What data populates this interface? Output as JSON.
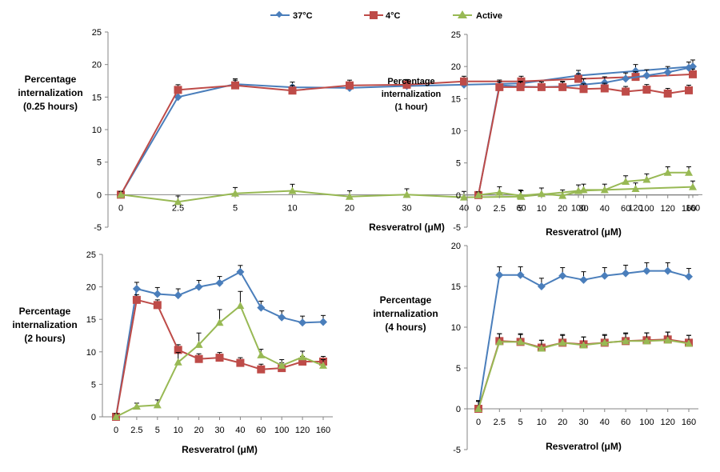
{
  "legend": {
    "items": [
      {
        "label": "37°C",
        "color": "#4a7ebb",
        "marker": "diamond"
      },
      {
        "label": "4°C",
        "color": "#be4b48",
        "marker": "square"
      },
      {
        "label": "Active",
        "color": "#98b954",
        "marker": "triangle"
      }
    ]
  },
  "chart_data": [
    {
      "type": "line",
      "title_lines": [
        "Percentage",
        "internalization",
        "(0.25 hours)"
      ],
      "xlabel": "Resveratrol (μM)",
      "categories": [
        "0",
        "2.5",
        "5",
        "10",
        "20",
        "30",
        "40",
        "60",
        "100",
        "120",
        "160"
      ],
      "ylim": [
        -5,
        25
      ],
      "yticks": [
        -5,
        0,
        5,
        10,
        15,
        20,
        25
      ],
      "series": [
        {
          "name": "37°C",
          "values": [
            0,
            15,
            17,
            16.5,
            16.4,
            16.7,
            16.9,
            17.1,
            18.3,
            19,
            19.7
          ],
          "errors": [
            0.5,
            1.0,
            0.8,
            0.8,
            0.8,
            0.8,
            0.8,
            0.8,
            0.8,
            1.0,
            1.0
          ]
        },
        {
          "name": "4°C",
          "values": [
            0,
            16.1,
            16.8,
            16,
            16.8,
            16.9,
            17.4,
            17.4,
            17.8,
            18.1,
            18.5
          ],
          "errors": [
            0.5,
            0.8,
            0.8,
            0.8,
            0.8,
            0.8,
            0.8,
            0.8,
            0.8,
            0.8,
            0.8
          ]
        },
        {
          "name": "Active",
          "values": [
            0,
            -1.1,
            0.2,
            0.6,
            -0.3,
            0,
            -0.4,
            -0.3,
            0.6,
            0.9,
            1.2
          ],
          "errors": [
            0.5,
            0.9,
            0.9,
            1.0,
            0.9,
            0.9,
            0.9,
            0.9,
            0.9,
            0.9,
            0.9
          ]
        }
      ]
    },
    {
      "type": "line",
      "title_lines": [
        "Percentage",
        "internalization",
        "(1 hour)"
      ],
      "xlabel": "Resveratrol (μM)",
      "categories": [
        "0",
        "2.5",
        "5",
        "10",
        "20",
        "30",
        "40",
        "60",
        "100",
        "120",
        "160"
      ],
      "ylim": [
        -5,
        25
      ],
      "yticks": [
        -5,
        0,
        5,
        10,
        15,
        20,
        25
      ],
      "series": [
        {
          "name": "37°C",
          "values": [
            0,
            17.1,
            16.9,
            16.8,
            16.9,
            17.2,
            17.5,
            18.1,
            18.6,
            19.1,
            19.8
          ],
          "errors": [
            0.5,
            0.8,
            0.8,
            0.8,
            0.8,
            0.9,
            0.9,
            0.9,
            0.9,
            0.9,
            0.9
          ]
        },
        {
          "name": "4°C",
          "values": [
            0,
            16.8,
            16.8,
            16.8,
            16.8,
            16.5,
            16.6,
            16.1,
            16.4,
            15.8,
            16.3
          ],
          "errors": [
            0.5,
            0.8,
            0.8,
            0.8,
            0.8,
            0.8,
            0.8,
            0.8,
            0.8,
            0.8,
            0.8
          ]
        },
        {
          "name": "Active",
          "values": [
            0,
            0.4,
            -0.1,
            0.2,
            -0.1,
            0.8,
            0.8,
            2.1,
            2.4,
            3.5,
            3.5
          ],
          "errors": [
            0.5,
            0.9,
            0.9,
            0.9,
            0.9,
            0.9,
            0.9,
            0.9,
            0.9,
            0.9,
            0.9
          ]
        }
      ]
    },
    {
      "type": "line",
      "title_lines": [
        "Percentage",
        "internalization",
        "(2 hours)"
      ],
      "xlabel": "Resveratrol (μM)",
      "categories": [
        "0",
        "2.5",
        "5",
        "10",
        "20",
        "30",
        "40",
        "60",
        "100",
        "120",
        "160"
      ],
      "ylim": [
        0,
        25
      ],
      "yticks": [
        0,
        5,
        10,
        15,
        20,
        25
      ],
      "series": [
        {
          "name": "37°C",
          "values": [
            0,
            19.7,
            18.9,
            18.7,
            20,
            20.6,
            22.3,
            16.8,
            15.3,
            14.5,
            14.6
          ],
          "errors": [
            0.5,
            1.0,
            1.0,
            1.0,
            1.0,
            1.0,
            1.0,
            1.0,
            1.0,
            1.0,
            1.0
          ]
        },
        {
          "name": "4°C",
          "values": [
            0,
            18,
            17.2,
            10.3,
            8.9,
            9.1,
            8.3,
            7.3,
            7.5,
            8.5,
            8.5
          ],
          "errors": [
            0.5,
            0.8,
            0.8,
            0.8,
            0.8,
            0.8,
            0.8,
            0.8,
            0.8,
            0.8,
            0.8
          ]
        },
        {
          "name": "Active",
          "values": [
            0,
            1.6,
            1.8,
            8.4,
            11.1,
            14.5,
            17.1,
            9.5,
            7.9,
            9.2,
            7.9
          ],
          "errors": [
            0.5,
            0.5,
            0.8,
            1.5,
            1.8,
            2.0,
            2.2,
            0.9,
            0.9,
            0.9,
            0.9
          ]
        }
      ]
    },
    {
      "type": "line",
      "title_lines": [
        "Percentage",
        "internalization",
        "(4 hours)"
      ],
      "xlabel": "Resveratrol (μM)",
      "categories": [
        "0",
        "2.5",
        "5",
        "10",
        "20",
        "30",
        "40",
        "60",
        "100",
        "120",
        "160"
      ],
      "ylim": [
        -5,
        20
      ],
      "yticks": [
        -5,
        0,
        5,
        10,
        15,
        20
      ],
      "series": [
        {
          "name": "37°C",
          "values": [
            0,
            16.4,
            16.4,
            15,
            16.3,
            15.8,
            16.3,
            16.6,
            16.9,
            16.9,
            16.2
          ],
          "errors": [
            1.0,
            1.0,
            1.0,
            1.0,
            1.0,
            1.0,
            1.0,
            1.0,
            1.0,
            1.0,
            1.0
          ]
        },
        {
          "name": "4°C",
          "values": [
            0,
            8.3,
            8.2,
            7.5,
            8.1,
            7.9,
            8.1,
            8.3,
            8.4,
            8.5,
            8.1
          ],
          "errors": [
            0.9,
            0.9,
            0.9,
            0.9,
            0.9,
            0.9,
            0.9,
            0.9,
            0.9,
            0.9,
            0.9
          ]
        },
        {
          "name": "Active",
          "values": [
            0,
            8.2,
            8.2,
            7.4,
            8.1,
            7.8,
            8.1,
            8.3,
            8.3,
            8.4,
            8
          ],
          "errors": [
            1.0,
            1.0,
            1.0,
            1.0,
            1.0,
            1.0,
            1.0,
            1.0,
            1.0,
            1.0,
            1.0
          ]
        }
      ]
    }
  ]
}
